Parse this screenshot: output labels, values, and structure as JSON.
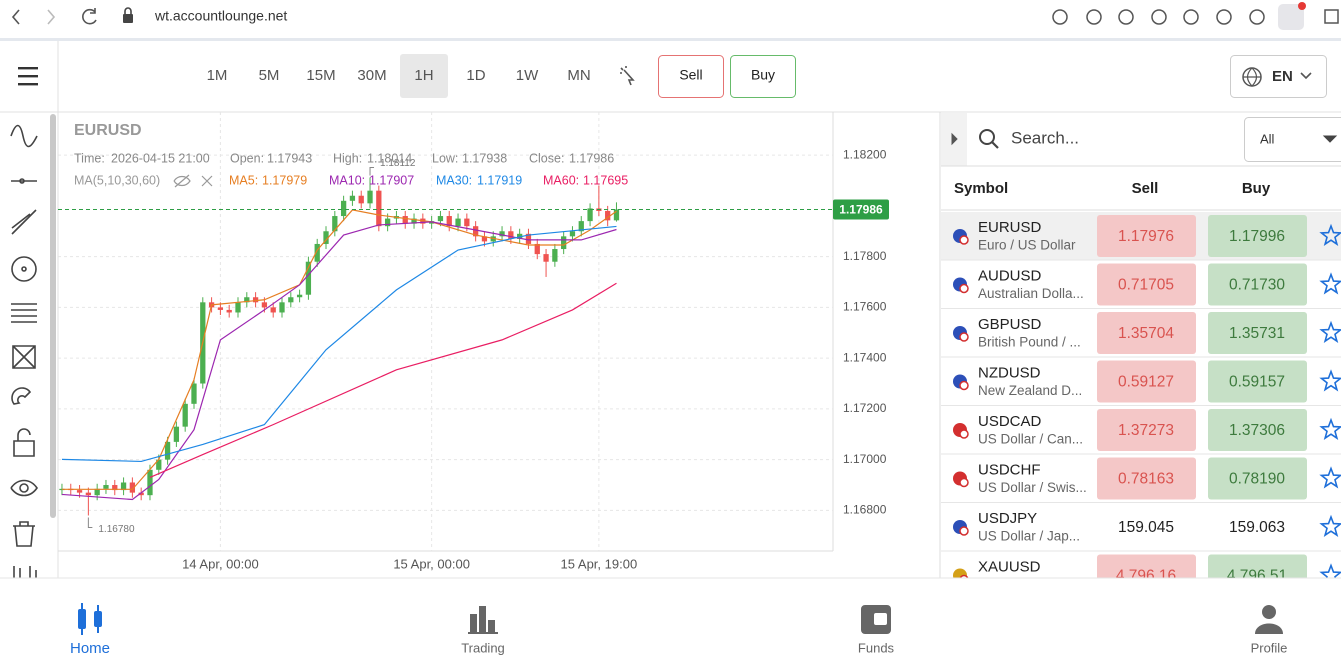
{
  "browser": {
    "url": "wt.accountlounge.net"
  },
  "header": {
    "timeframes": [
      "1M",
      "5M",
      "15M",
      "30M",
      "1H",
      "1D",
      "1W",
      "MN"
    ],
    "active_timeframe": "1H",
    "sell_button": "Sell",
    "buy_button": "Buy",
    "language": "EN"
  },
  "chart_data": {
    "type": "candlestick",
    "symbol": "EURUSD",
    "readout": {
      "time_label": "Time:",
      "time": "2026-04-15 21:00",
      "open_label": "Open:",
      "high_label": "High:",
      "low_label": "Low:",
      "close_label": "Close:",
      "ma_label": "MA(5,10,30,60)"
    },
    "up_color": "#4caf50",
    "down_color": "#ef5350",
    "open": [
      1.1688,
      1.16885,
      1.1688,
      1.1687,
      1.1686,
      1.16885,
      1.169,
      1.1688,
      1.1691,
      1.1687,
      1.1686,
      1.1696,
      1.17,
      1.1707,
      1.1713,
      1.1722,
      1.173,
      1.1762,
      1.176,
      1.1759,
      1.1758,
      1.1762,
      1.1764,
      1.1762,
      1.176,
      1.1758,
      1.1762,
      1.1764,
      1.1765,
      1.1778,
      1.1785,
      1.179,
      1.1796,
      1.1802,
      1.1804,
      1.1801,
      1.1806,
      1.1792,
      1.1795,
      1.1796,
      1.1793,
      1.1795,
      1.1793,
      1.1794,
      1.1796,
      1.1792,
      1.1795,
      1.1792,
      1.1788,
      1.1786,
      1.1788,
      1.179,
      1.1787,
      1.1789,
      1.1785,
      1.1781,
      1.1778,
      1.1783,
      1.1788,
      1.179,
      1.1794,
      1.1799,
      1.1798,
      1.17943
    ],
    "high": [
      1.16905,
      1.16905,
      1.169,
      1.1689,
      1.16905,
      1.1692,
      1.1692,
      1.1693,
      1.1693,
      1.1689,
      1.1698,
      1.1702,
      1.1709,
      1.1715,
      1.1724,
      1.1732,
      1.1764,
      1.1764,
      1.1762,
      1.1761,
      1.1764,
      1.1766,
      1.1766,
      1.1764,
      1.1762,
      1.1764,
      1.1766,
      1.1767,
      1.178,
      1.1787,
      1.1792,
      1.1798,
      1.1804,
      1.1806,
      1.1806,
      1.18112,
      1.1808,
      1.1797,
      1.1798,
      1.1798,
      1.1797,
      1.1797,
      1.1796,
      1.1798,
      1.1798,
      1.1797,
      1.1797,
      1.1794,
      1.179,
      1.179,
      1.1792,
      1.1792,
      1.1791,
      1.1791,
      1.1787,
      1.1783,
      1.1785,
      1.179,
      1.1792,
      1.1796,
      1.1801,
      1.1808,
      1.18,
      1.18014
    ],
    "low": [
      1.1686,
      1.1686,
      1.1685,
      1.1678,
      1.1684,
      1.16865,
      1.1686,
      1.1686,
      1.1685,
      1.1684,
      1.1684,
      1.1694,
      1.1698,
      1.1705,
      1.1711,
      1.172,
      1.1728,
      1.1758,
      1.1757,
      1.1756,
      1.1756,
      1.176,
      1.176,
      1.1758,
      1.1756,
      1.1756,
      1.176,
      1.1762,
      1.1763,
      1.1776,
      1.1783,
      1.1788,
      1.1794,
      1.18,
      1.1799,
      1.1799,
      1.179,
      1.179,
      1.1793,
      1.1791,
      1.1791,
      1.1791,
      1.1791,
      1.1792,
      1.179,
      1.179,
      1.179,
      1.1786,
      1.1784,
      1.1784,
      1.1786,
      1.1785,
      1.1785,
      1.1783,
      1.1779,
      1.1772,
      1.1776,
      1.1781,
      1.1786,
      1.1788,
      1.1792,
      1.1796,
      1.1792,
      1.17938
    ],
    "close": [
      1.16885,
      1.1688,
      1.1687,
      1.1686,
      1.16885,
      1.169,
      1.1688,
      1.1691,
      1.1687,
      1.1686,
      1.1696,
      1.17,
      1.1707,
      1.1713,
      1.1722,
      1.173,
      1.1762,
      1.176,
      1.1759,
      1.1758,
      1.1762,
      1.1764,
      1.1762,
      1.176,
      1.1758,
      1.1762,
      1.1764,
      1.1765,
      1.1778,
      1.1785,
      1.179,
      1.1796,
      1.1802,
      1.1804,
      1.1801,
      1.1806,
      1.1792,
      1.1795,
      1.1796,
      1.1793,
      1.1795,
      1.1793,
      1.1794,
      1.1796,
      1.1792,
      1.1795,
      1.1792,
      1.1788,
      1.1786,
      1.1788,
      1.179,
      1.1787,
      1.1789,
      1.1785,
      1.1781,
      1.1778,
      1.1783,
      1.1788,
      1.179,
      1.1794,
      1.1799,
      1.1798,
      1.17943,
      1.17986
    ],
    "max_label": "1.18112",
    "min_label": "1.16780",
    "series": [
      {
        "name": "MA5:",
        "color": "#e67e22",
        "x": [
          0,
          8,
          11,
          15,
          17,
          23,
          27,
          29,
          33,
          36,
          42,
          47,
          53,
          57,
          60,
          63
        ],
        "values": [
          1.16883,
          1.16883,
          1.17001,
          1.17315,
          1.1761,
          1.1763,
          1.17689,
          1.17826,
          1.17984,
          1.17964,
          1.17937,
          1.17885,
          1.17846,
          1.17846,
          1.17905,
          1.17979
        ]
      },
      {
        "name": "MA10:",
        "color": "#9c27b0",
        "x": [
          0,
          8,
          11,
          15,
          18,
          23,
          27,
          32,
          36,
          42,
          47,
          53,
          59,
          63
        ],
        "values": [
          1.16863,
          1.16843,
          1.16922,
          1.17118,
          1.17472,
          1.1759,
          1.17689,
          1.17885,
          1.17925,
          1.17937,
          1.17905,
          1.17866,
          1.17866,
          1.17907
        ]
      },
      {
        "name": "MA30:",
        "color": "#1e88e5",
        "x": [
          0,
          9,
          16,
          23,
          30,
          38,
          45,
          53,
          63
        ],
        "values": [
          1.17001,
          1.16993,
          1.1706,
          1.17138,
          1.17433,
          1.17669,
          1.17826,
          1.17885,
          1.17919
        ]
      },
      {
        "name": "MA60:",
        "color": "#e91e63",
        "x": [
          10,
          16,
          24,
          38,
          50,
          58,
          63
        ],
        "values": [
          1.1693,
          1.1702,
          1.17138,
          1.17354,
          1.17472,
          1.1759,
          1.17695
        ]
      }
    ],
    "last_price": 1.17986,
    "last_price_color": "#2e9e45",
    "xlim": [
      -0.45,
      87.6
    ],
    "ylim": [
      1.1664,
      1.1837
    ],
    "xticks": [
      {
        "value": 18,
        "label": "14 Apr, 00:00"
      },
      {
        "value": 42,
        "label": "15 Apr, 00:00"
      },
      {
        "value": 61,
        "label": "15 Apr, 19:00"
      }
    ],
    "yticks": [
      {
        "value": 1.168,
        "label": "1.16800"
      },
      {
        "value": 1.17,
        "label": "1.17000"
      },
      {
        "value": 1.172,
        "label": "1.17200"
      },
      {
        "value": 1.174,
        "label": "1.17400"
      },
      {
        "value": 1.176,
        "label": "1.17600"
      },
      {
        "value": 1.178,
        "label": "1.17800"
      },
      {
        "value": 1.182,
        "label": "1.18200"
      }
    ],
    "grid": true
  },
  "watchlist": {
    "search_placeholder": "Search...",
    "filter": "All",
    "columns": [
      "Symbol",
      "Sell",
      "Buy"
    ],
    "rows": [
      {
        "symbol": "EURUSD",
        "description": "Euro / US Dollar",
        "sell": "1.17976",
        "buy": "1.17996",
        "highlight": true
      },
      {
        "symbol": "AUDUSD",
        "description": "Australian Dolla...",
        "sell": "0.71705",
        "buy": "0.71730",
        "highlight": true
      },
      {
        "symbol": "GBPUSD",
        "description": "British Pound / ...",
        "sell": "1.35704",
        "buy": "1.35731",
        "highlight": true
      },
      {
        "symbol": "NZDUSD",
        "description": "New Zealand D...",
        "sell": "0.59127",
        "buy": "0.59157",
        "highlight": true
      },
      {
        "symbol": "USDCAD",
        "description": "US Dollar / Can...",
        "sell": "1.37273",
        "buy": "1.37306",
        "highlight": true
      },
      {
        "symbol": "USDCHF",
        "description": "US Dollar / Swis...",
        "sell": "0.78163",
        "buy": "0.78190",
        "highlight": true
      },
      {
        "symbol": "USDJPY",
        "description": "US Dollar / Jap...",
        "sell": "159.045",
        "buy": "159.063",
        "highlight": false
      },
      {
        "symbol": "XAUUSD",
        "description": "",
        "sell": "4 796.16",
        "buy": "4 796.51",
        "highlight": true
      }
    ]
  },
  "nav": [
    "Home",
    "Trading",
    "Funds",
    "Profile"
  ]
}
